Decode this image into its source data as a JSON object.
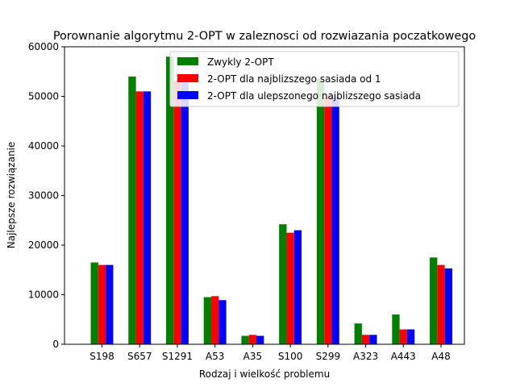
{
  "chart_data": {
    "type": "bar",
    "title": "Porownanie algorytmu 2-OPT w zaleznosci od rozwiazania poczatkowego",
    "xlabel": "Rodzaj i wielkość problemu",
    "ylabel": "Najlepsze rozwiązanie",
    "ylim": [
      0,
      60000
    ],
    "yticks": [
      0,
      10000,
      20000,
      30000,
      40000,
      50000,
      60000
    ],
    "grid": false,
    "legend_position": "top-right",
    "categories": [
      "S198",
      "S657",
      "S1291",
      "A53",
      "A35",
      "S100",
      "S299",
      "A323",
      "A443",
      "A48"
    ],
    "series": [
      {
        "name": "Zwykly 2-OPT",
        "color": "#008000",
        "values": [
          16500,
          54000,
          58000,
          9500,
          1700,
          24200,
          53500,
          4200,
          6000,
          17500
        ]
      },
      {
        "name": "2-OPT dla najblizszego sasiada od 1",
        "color": "#ff0000",
        "values": [
          16000,
          51000,
          53200,
          9700,
          1900,
          22500,
          50000,
          1900,
          3000,
          16000
        ]
      },
      {
        "name": "2-OPT dla ulepszonego najblizszego sasiada",
        "color": "#0000ff",
        "values": [
          16000,
          51000,
          53200,
          8900,
          1700,
          23000,
          50000,
          1900,
          3000,
          15300
        ]
      }
    ]
  }
}
